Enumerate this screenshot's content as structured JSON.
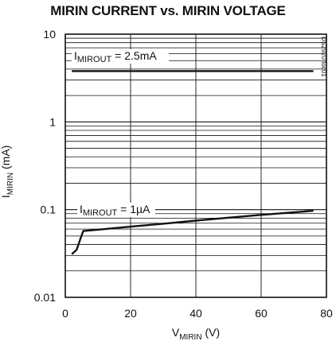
{
  "chart_data": {
    "type": "line",
    "title": "MIRIN CURRENT vs. MIRIN VOLTAGE",
    "xlabel": {
      "main": "V",
      "sub": "MIRIN",
      "unit": " (V)"
    },
    "ylabel": {
      "main": "I",
      "sub": "MIRIN",
      "unit": " (mA)"
    },
    "yscale": "log",
    "xlim": [
      0,
      80
    ],
    "ylim": [
      0.01,
      10
    ],
    "x_ticks": [
      "0",
      "20",
      "40",
      "60",
      "80"
    ],
    "y_ticks": [
      "0.01",
      "0.1",
      "1",
      "10"
    ],
    "grid": true,
    "series": [
      {
        "name": "I_MIROUT = 2.5mA",
        "label": {
          "main": "I",
          "sub": "MIROUT",
          "rest": " = 2.5mA"
        },
        "x": [
          2,
          76
        ],
        "y": [
          3.8,
          3.8
        ]
      },
      {
        "name": "I_MIROUT = 1µA",
        "label": {
          "main": "I",
          "sub": "MIROUT",
          "rest": " = 1µA"
        },
        "x": [
          2,
          3.5,
          4.5,
          5.5,
          10,
          20,
          30,
          40,
          50,
          60,
          70,
          76
        ],
        "y": [
          0.031,
          0.035,
          0.045,
          0.057,
          0.059,
          0.064,
          0.069,
          0.075,
          0.081,
          0.087,
          0.093,
          0.097
        ]
      }
    ],
    "figure_code": "DS2920 toc01"
  }
}
